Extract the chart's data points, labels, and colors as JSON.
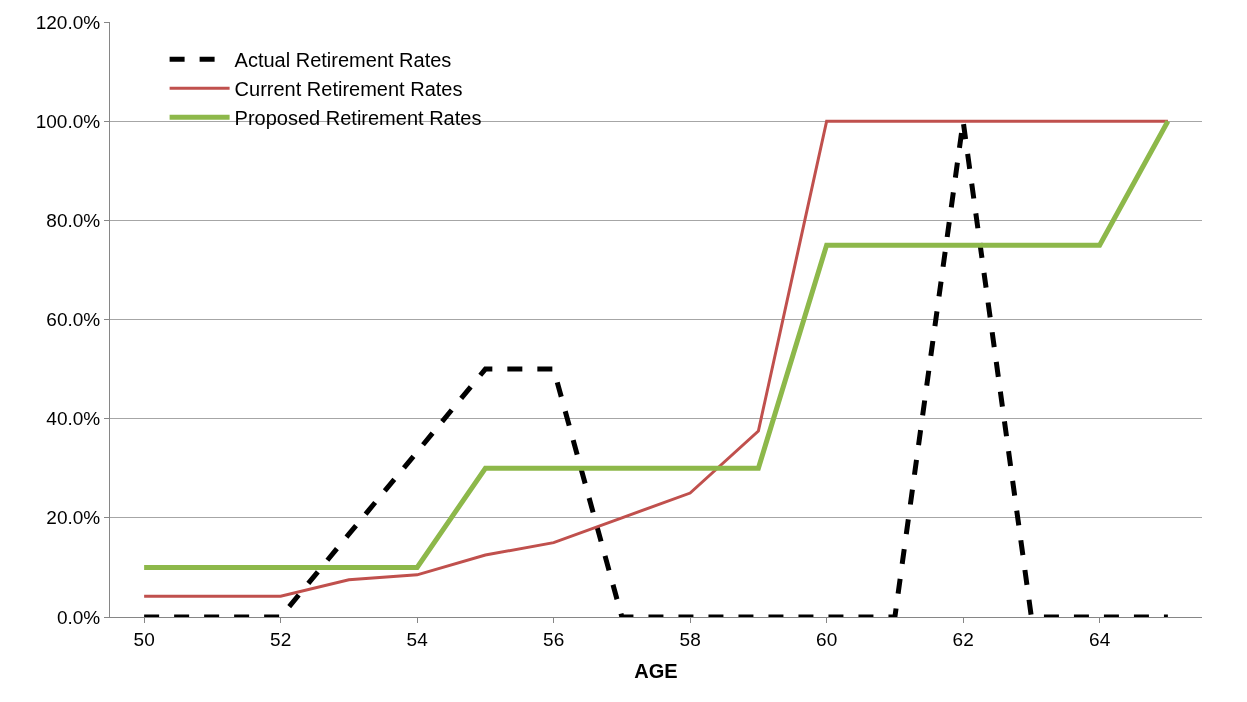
{
  "chart_data": {
    "type": "line",
    "xlabel": "AGE",
    "x": [
      50,
      51,
      52,
      53,
      54,
      55,
      56,
      57,
      58,
      59,
      60,
      61,
      62,
      63,
      64,
      65
    ],
    "series": [
      {
        "name": "Actual Retirement Rates",
        "color": "#000000",
        "line_style": "dashed",
        "values": [
          0,
          0,
          0,
          16.7,
          33.3,
          50,
          50,
          0,
          0,
          0,
          0,
          0,
          100,
          0,
          0,
          0
        ]
      },
      {
        "name": "Current Retirement Rates",
        "color": "#c0504d",
        "line_style": "solid",
        "values": [
          4.2,
          4.2,
          4.2,
          7.5,
          8.5,
          12.5,
          15,
          20,
          25,
          37.5,
          100,
          100,
          100,
          100,
          100,
          100
        ]
      },
      {
        "name": "Proposed Retirement Rates",
        "color": "#8db84a",
        "line_style": "solid",
        "values": [
          10,
          10,
          10,
          10,
          10,
          30,
          30,
          30,
          30,
          30,
          75,
          75,
          75,
          75,
          75,
          100
        ]
      }
    ],
    "xlim": [
      49.5,
      65.5
    ],
    "xticks": [
      50,
      52,
      54,
      56,
      58,
      60,
      62,
      64
    ],
    "ylim": [
      0,
      120
    ],
    "yticks": [
      {
        "value": 0,
        "label": "0.0%"
      },
      {
        "value": 20,
        "label": "20.0%"
      },
      {
        "value": 40,
        "label": "40.0%"
      },
      {
        "value": 60,
        "label": "60.0%"
      },
      {
        "value": 80,
        "label": "80.0%"
      },
      {
        "value": 100,
        "label": "100.0%"
      },
      {
        "value": 120,
        "label": "120.0%"
      }
    ],
    "grid": "y",
    "legend": "top left",
    "marker": "none"
  }
}
